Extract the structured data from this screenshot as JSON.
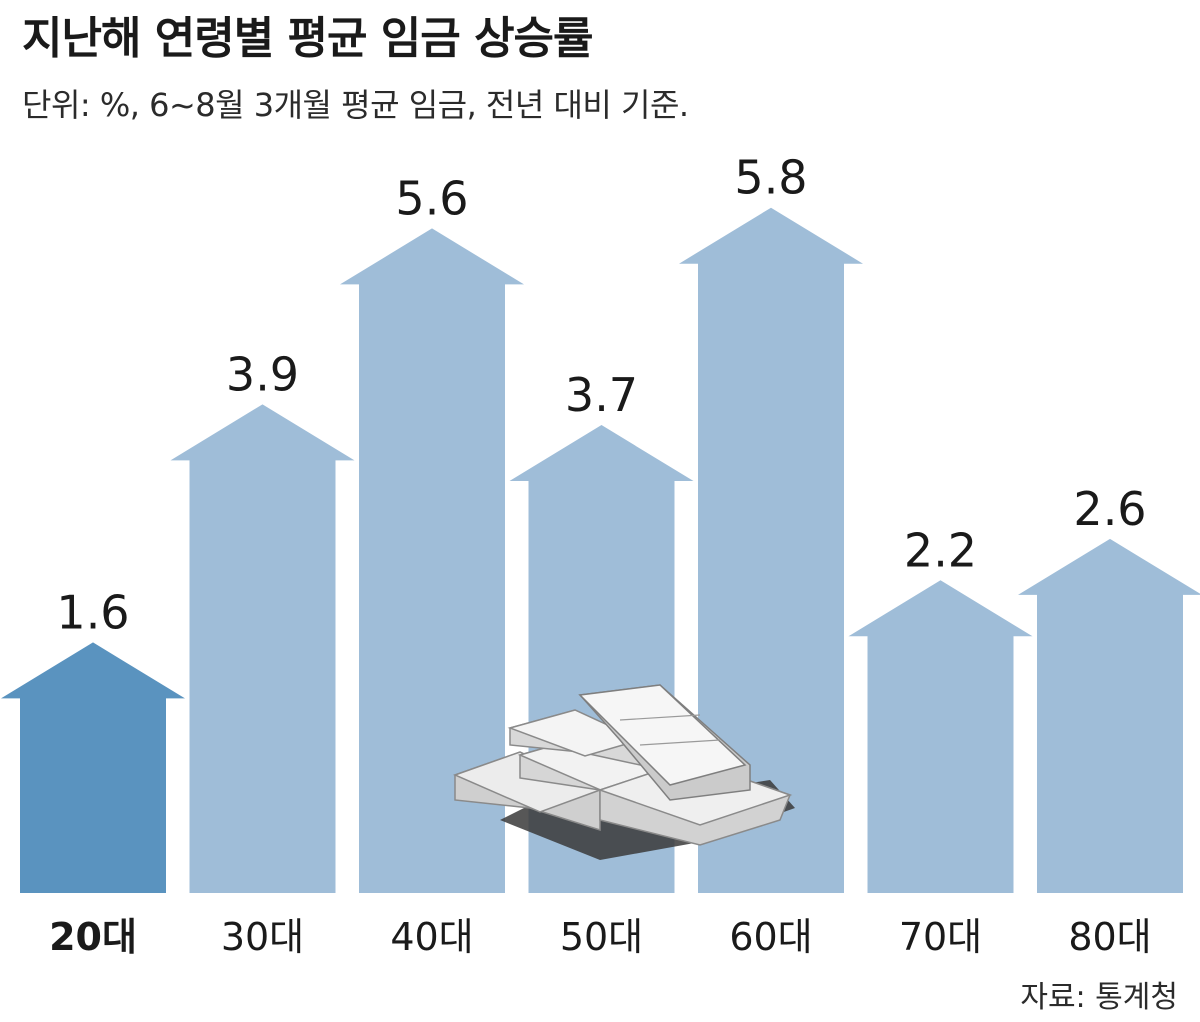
{
  "header": {
    "title": "지난해 연령별 평균 임금 상승률",
    "subtitle": "단위: %, 6~8월 3개월 평균 임금, 전년 대비 기준."
  },
  "footer": {
    "source": "자료: 통계청"
  },
  "colors": {
    "highlight": "#5a93bf",
    "bar": "#9fbdd8",
    "text": "#1a1a1a"
  },
  "chart_data": {
    "type": "bar",
    "title": "지난해 연령별 평균 임금 상승률",
    "subtitle": "단위: %, 6~8월 3개월 평균 임금, 전년 대비 기준.",
    "categories": [
      "20대",
      "30대",
      "40대",
      "50대",
      "60대",
      "70대",
      "80대"
    ],
    "values": [
      1.6,
      3.9,
      5.6,
      3.7,
      5.8,
      2.2,
      2.6
    ],
    "value_labels": [
      "1.6",
      "3.9",
      "5.6",
      "3.7",
      "5.8",
      "2.2",
      "2.6"
    ],
    "highlight_index": 0,
    "xlabel": "",
    "ylabel": "",
    "grid": false,
    "legend": "none",
    "mark_shape": "arrow"
  }
}
